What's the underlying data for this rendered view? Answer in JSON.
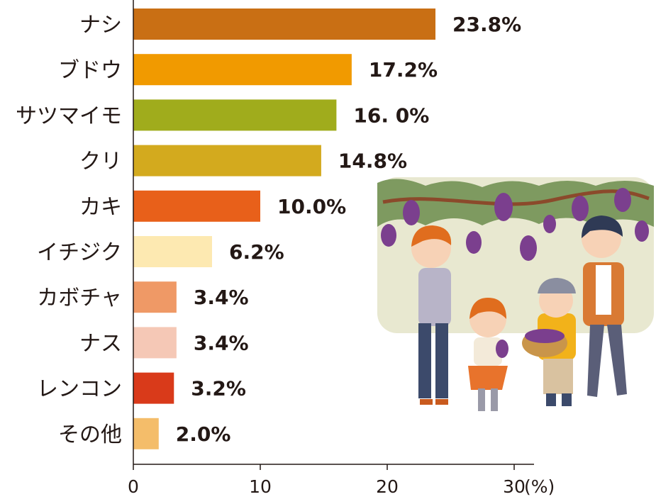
{
  "chart_data": {
    "type": "bar",
    "orientation": "horizontal",
    "categories": [
      "ナシ",
      "ブドウ",
      "サツマイモ",
      "クリ",
      "カキ",
      "イチジク",
      "カボチャ",
      "ナス",
      "レンコン",
      "その他"
    ],
    "values": [
      23.8,
      17.2,
      16.0,
      14.8,
      10.0,
      6.2,
      3.4,
      3.4,
      3.2,
      2.0
    ],
    "value_labels": [
      "23.8%",
      "17.2%",
      "16. 0%",
      "14.8%",
      "10.0%",
      "6.2%",
      "3.4%",
      "3.4%",
      "3.2%",
      "2.0%"
    ],
    "bar_colors": [
      "#c96f14",
      "#f19a00",
      "#a0ac1c",
      "#d3aa1e",
      "#e8601a",
      "#fde9b1",
      "#ef9966",
      "#f5c8b6",
      "#d93a1a",
      "#f4bd6a"
    ],
    "xticks": [
      "0",
      "10",
      "20",
      "30"
    ],
    "xtick_values": [
      0,
      10,
      20,
      30
    ],
    "xunit": "(%)",
    "xlim": [
      0,
      30
    ],
    "grid": false,
    "title": "",
    "xlabel": "",
    "ylabel": ""
  },
  "illustration": {
    "subject": "family-grape-picking",
    "colors": {
      "background": "#e8e8d0",
      "foliage": "#7e9a60",
      "grape": "#7b3f8e"
    }
  }
}
